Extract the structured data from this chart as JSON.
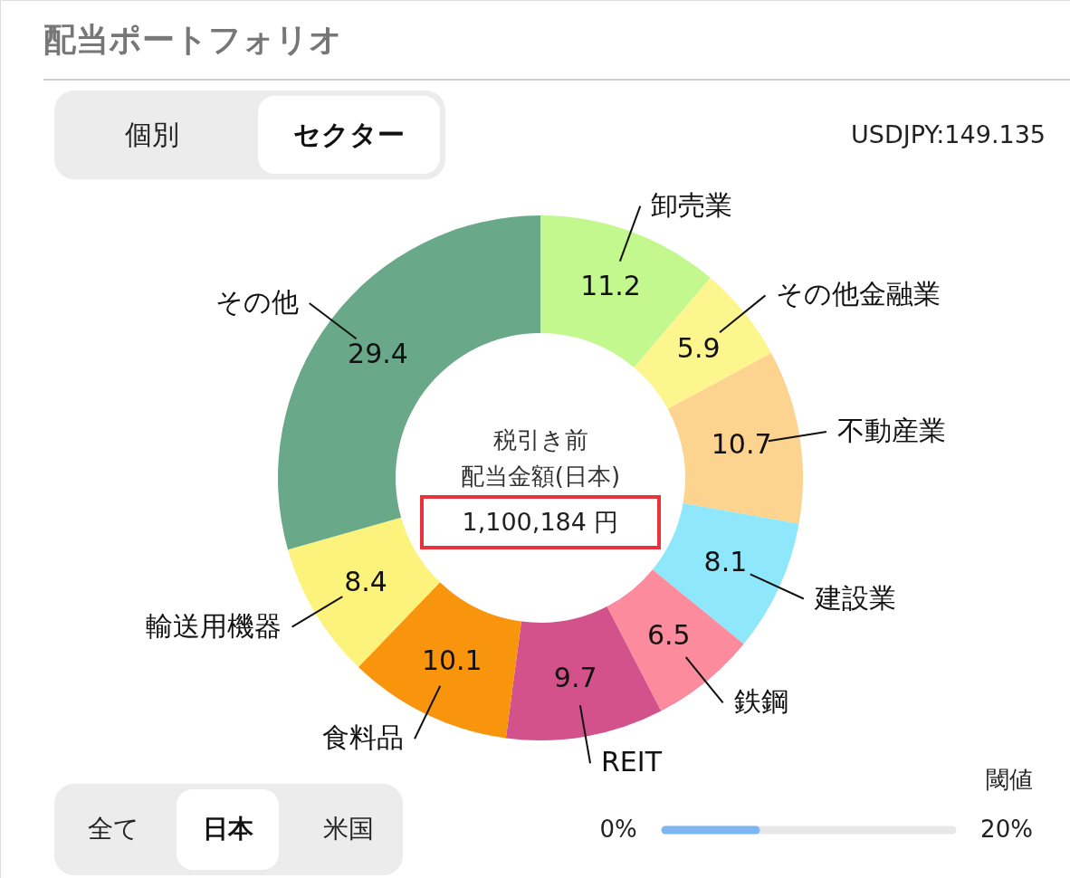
{
  "chart_data": {
    "type": "donut",
    "title": "配当ポートフォリオ",
    "categories": [
      "卸売業",
      "その他金融業",
      "不動産業",
      "建設業",
      "鉄鋼",
      "REIT",
      "食料品",
      "輸送用機器",
      "その他"
    ],
    "values": [
      11.2,
      5.9,
      10.7,
      8.1,
      6.5,
      9.7,
      10.1,
      8.4,
      29.4
    ],
    "colors": [
      "#c2f88e",
      "#fdf58e",
      "#fdd390",
      "#8ee7fb",
      "#fc8c9d",
      "#d4528b",
      "#f8950c",
      "#fcf37d",
      "#69a98a"
    ],
    "data_labels": true,
    "annotations": [
      "個別",
      "セクター",
      "USDJPY:149.135",
      "税引き前",
      "配当金額(日本)",
      "1,100,184 円",
      "全て",
      "日本",
      "米国",
      "閾値",
      "0%",
      "20%"
    ]
  }
}
